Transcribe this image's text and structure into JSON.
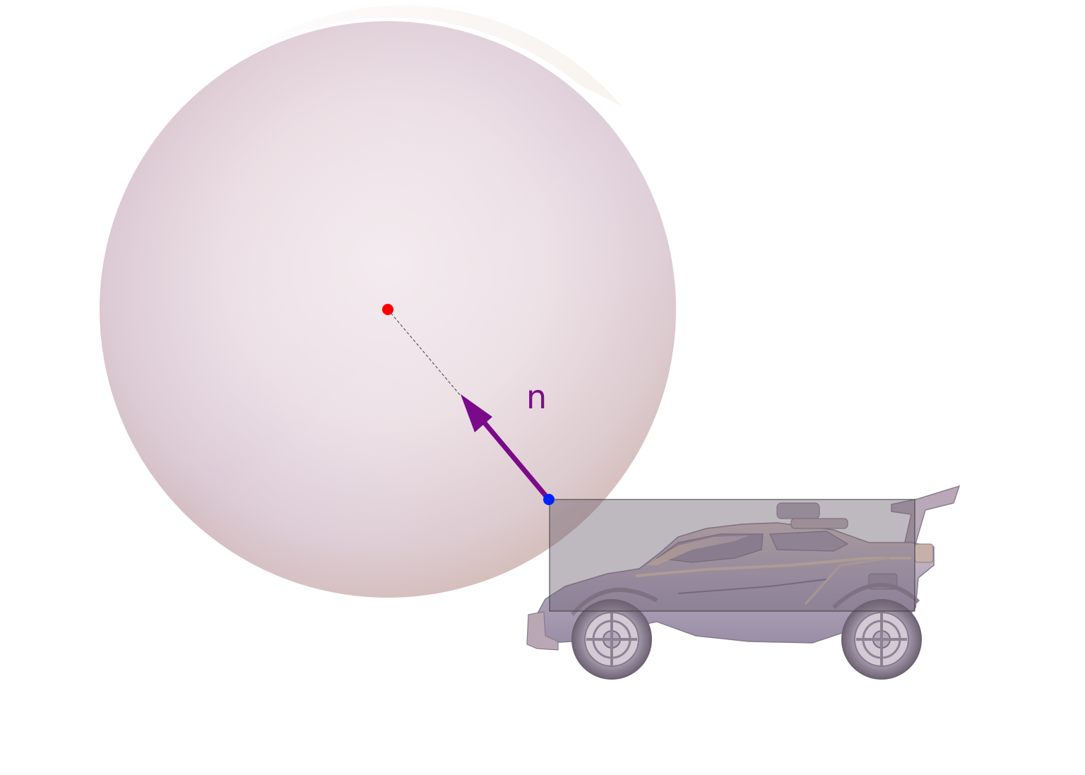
{
  "diagram": {
    "normal_label": "n",
    "colors": {
      "normal_arrow": "#7a0a8a",
      "sphere_center_point": "#ff0000",
      "contact_point": "#0022ff",
      "dashed_line": "#555555",
      "hitbox_fill": "#6e6470",
      "hitbox_stroke": "#3a3a3a",
      "sphere_tint_top_right": "#e2d2c0",
      "sphere_tint_bottom": "#d6b7b0",
      "car_body": "#b0a5bf",
      "car_highlight": "#e8cfb4",
      "car_shadow": "#7d7082"
    },
    "objects": [
      {
        "name": "ball-sphere",
        "icon": "sphere-shape"
      },
      {
        "name": "car",
        "icon": "car-silhouette"
      },
      {
        "name": "hitbox",
        "icon": "rectangle-outline"
      },
      {
        "name": "normal-vector",
        "icon": "arrow-up-left"
      }
    ]
  }
}
